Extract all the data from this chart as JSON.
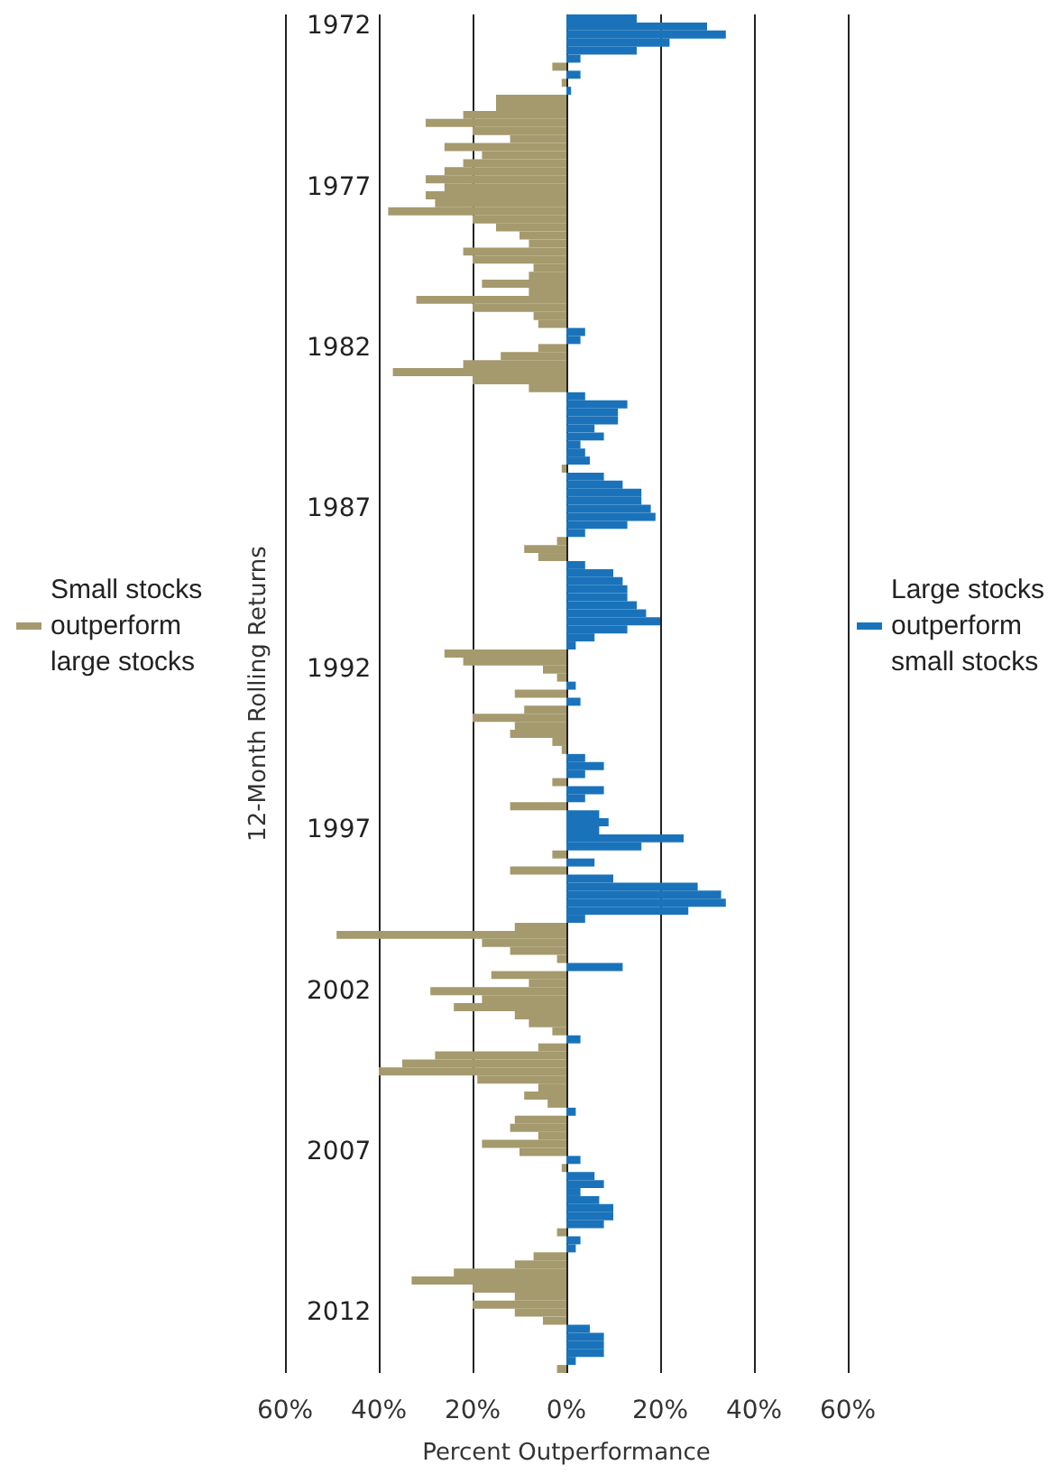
{
  "chart_data": {
    "type": "bar",
    "orientation": "horizontal",
    "stacked": true,
    "xlabel": "Percent Outperformance",
    "ylabel": "12-Month Rolling Returns",
    "categories": [
      null,
      "1972",
      null,
      null,
      null,
      null,
      null,
      null,
      null,
      null,
      null,
      null,
      null,
      null,
      null,
      null,
      null,
      null,
      null,
      null,
      null,
      "1977",
      null,
      null,
      null,
      null,
      null,
      null,
      null,
      null,
      null,
      null,
      null,
      null,
      null,
      null,
      null,
      null,
      null,
      null,
      null,
      "1982",
      null,
      null,
      null,
      null,
      null,
      null,
      null,
      null,
      null,
      null,
      null,
      null,
      null,
      null,
      null,
      null,
      null,
      null,
      null,
      "1987",
      null,
      null,
      null,
      null,
      null,
      null,
      null,
      null,
      null,
      null,
      null,
      null,
      null,
      null,
      null,
      null,
      null,
      null,
      null,
      "1992",
      null,
      null,
      null,
      null,
      null,
      null,
      null,
      null,
      null,
      null,
      null,
      null,
      null,
      null,
      null,
      null,
      null,
      null,
      null,
      "1997",
      null,
      null,
      null,
      null,
      null,
      null,
      null,
      null,
      null,
      null,
      null,
      null,
      null,
      null,
      null,
      null,
      null,
      null,
      null,
      "2002",
      null,
      null,
      null,
      null,
      null,
      null,
      null,
      null,
      null,
      null,
      null,
      null,
      null,
      null,
      null,
      null,
      null,
      null,
      null,
      "2007",
      null,
      null,
      null,
      null,
      null,
      null,
      null,
      null,
      null,
      null,
      null,
      null,
      null,
      null,
      null,
      null,
      null,
      null,
      null,
      "2012",
      null,
      null,
      null,
      null,
      null,
      null,
      null
    ],
    "series": [
      {
        "name": "Small stocks outperform large stocks",
        "color": "#a59a6d",
        "values": [
          null,
          null,
          null,
          null,
          null,
          null,
          -3,
          null,
          -1,
          null,
          -15,
          -15,
          -22,
          -30,
          -20,
          -12,
          -26,
          -18,
          -22,
          -26,
          -30,
          -26,
          -30,
          -28,
          -38,
          -20,
          -15,
          -10,
          -8,
          -22,
          -20,
          -7,
          -8,
          -18,
          -8,
          -32,
          -20,
          -7,
          -6,
          null,
          null,
          -6,
          -14,
          -22,
          -37,
          -20,
          -8,
          null,
          null,
          null,
          null,
          null,
          null,
          null,
          null,
          null,
          -1,
          null,
          null,
          null,
          null,
          null,
          null,
          null,
          null,
          -2,
          -9,
          -6,
          null,
          null,
          null,
          null,
          null,
          null,
          null,
          null,
          null,
          null,
          null,
          -26,
          -22,
          -5,
          -2,
          null,
          -11,
          null,
          -9,
          -20,
          -11,
          -12,
          -3,
          -1,
          null,
          null,
          null,
          -3,
          null,
          null,
          -12,
          null,
          null,
          null,
          null,
          null,
          -3,
          null,
          -12,
          null,
          null,
          null,
          null,
          null,
          null,
          -11,
          -49,
          -18,
          -12,
          -2,
          null,
          -16,
          -8,
          -29,
          -18,
          -24,
          -11,
          -8,
          -3,
          null,
          -6,
          -28,
          -35,
          -40,
          -19,
          -6,
          -9,
          -4,
          null,
          -11,
          -12,
          -6,
          -18,
          -10,
          null,
          -1,
          null,
          null,
          null,
          null,
          null,
          null,
          null,
          -2,
          null,
          null,
          -7,
          -11,
          -24,
          -33,
          -20,
          -11,
          -20,
          -11,
          -5,
          null,
          null,
          null,
          null,
          null,
          -2
        ]
      },
      {
        "name": "Large stocks outperform small stocks",
        "color": "#1a73ba",
        "values": [
          15,
          30,
          34,
          22,
          15,
          3,
          null,
          3,
          null,
          1,
          null,
          null,
          null,
          null,
          null,
          null,
          null,
          null,
          null,
          null,
          null,
          null,
          null,
          null,
          null,
          null,
          null,
          null,
          null,
          null,
          null,
          null,
          null,
          null,
          null,
          null,
          null,
          null,
          null,
          4,
          3,
          null,
          null,
          null,
          null,
          null,
          null,
          4,
          13,
          11,
          11,
          6,
          8,
          3,
          4,
          5,
          null,
          8,
          12,
          16,
          16,
          18,
          19,
          13,
          4,
          null,
          null,
          null,
          4,
          10,
          12,
          13,
          13,
          15,
          17,
          20,
          13,
          6,
          2,
          null,
          null,
          null,
          null,
          2,
          null,
          3,
          null,
          null,
          null,
          null,
          null,
          null,
          4,
          8,
          4,
          null,
          8,
          4,
          null,
          7,
          9,
          7,
          25,
          16,
          null,
          6,
          null,
          10,
          28,
          33,
          34,
          26,
          4,
          null,
          null,
          null,
          null,
          null,
          12,
          null,
          null,
          null,
          null,
          null,
          null,
          null,
          null,
          3,
          null,
          null,
          null,
          null,
          null,
          null,
          null,
          null,
          2,
          null,
          null,
          null,
          null,
          null,
          3,
          null,
          6,
          8,
          3,
          7,
          10,
          10,
          8,
          null,
          3,
          2,
          null,
          null,
          null,
          null,
          null,
          null,
          null,
          null,
          null,
          5,
          8,
          8,
          8,
          2,
          null
        ]
      }
    ],
    "xlim": [
      -60,
      60
    ],
    "xticks": [
      {
        "value": -60,
        "label": "60%"
      },
      {
        "value": -40,
        "label": "40%"
      },
      {
        "value": -20,
        "label": "20%"
      },
      {
        "value": 0,
        "label": "0%"
      },
      {
        "value": 20,
        "label": "20%"
      },
      {
        "value": 40,
        "label": "40%"
      },
      {
        "value": 60,
        "label": "60%"
      }
    ],
    "grid": "x",
    "legend": "left"
  }
}
